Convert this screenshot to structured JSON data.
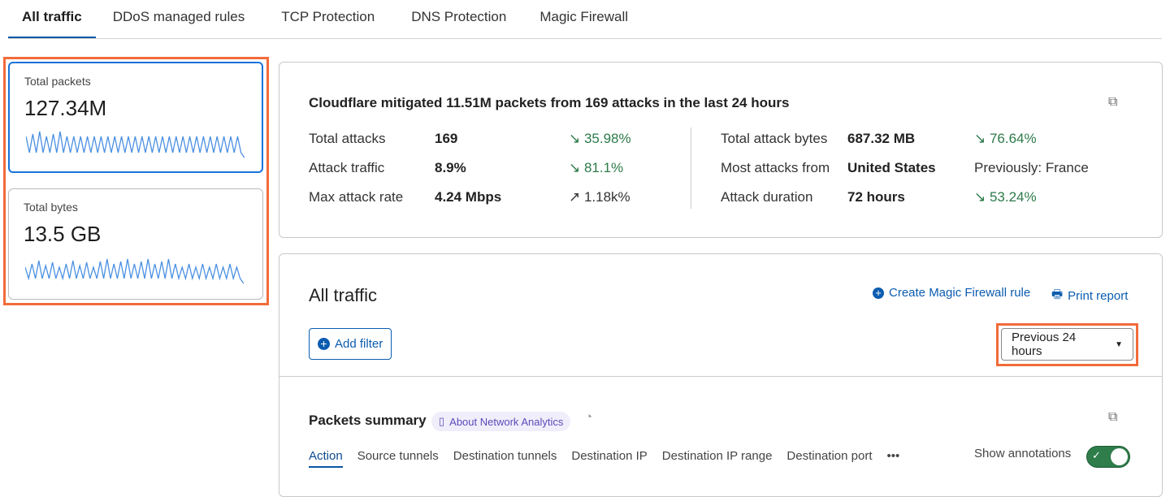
{
  "tabs": [
    "All traffic",
    "DDoS managed rules",
    "TCP Protection",
    "DNS Protection",
    "Magic Firewall"
  ],
  "cards": [
    {
      "label": "Total packets",
      "value": "127.34M"
    },
    {
      "label": "Total bytes",
      "value": "13.5 GB"
    }
  ],
  "summary": {
    "headline": "Cloudflare mitigated 11.51M packets from 169 attacks in the last 24 hours",
    "left": [
      {
        "label": "Total attacks",
        "value": "169",
        "change": "35.98%",
        "dir": "down"
      },
      {
        "label": "Attack traffic",
        "value": "8.9%",
        "change": "81.1%",
        "dir": "down"
      },
      {
        "label": "Max attack rate",
        "value": "4.24 Mbps",
        "change": "1.18k%",
        "dir": "up"
      }
    ],
    "right": [
      {
        "label": "Total attack bytes",
        "value": "687.32 MB",
        "change": "76.64%",
        "dir": "down"
      },
      {
        "label": "Most attacks from",
        "value": "United States",
        "change": "Previously: France",
        "dir": "none"
      },
      {
        "label": "Attack duration",
        "value": "72 hours",
        "change": "53.24%",
        "dir": "down"
      }
    ]
  },
  "traffic": {
    "title": "All traffic",
    "create_rule": "Create Magic Firewall rule",
    "print": "Print report",
    "add_filter": "Add filter",
    "time_range": "Previous 24 hours"
  },
  "packets": {
    "title": "Packets summary",
    "about": "About Network Analytics",
    "subtabs": [
      "Action",
      "Source tunnels",
      "Destination tunnels",
      "Destination IP",
      "Destination IP range",
      "Destination port"
    ],
    "more": "•••",
    "annotations_label": "Show annotations",
    "annotations_on": true
  },
  "colors": {
    "accent": "#0b5cb0",
    "highlight": "#f26b3a",
    "positive": "#2d7a4a",
    "toggle": "#2e7d4a"
  }
}
